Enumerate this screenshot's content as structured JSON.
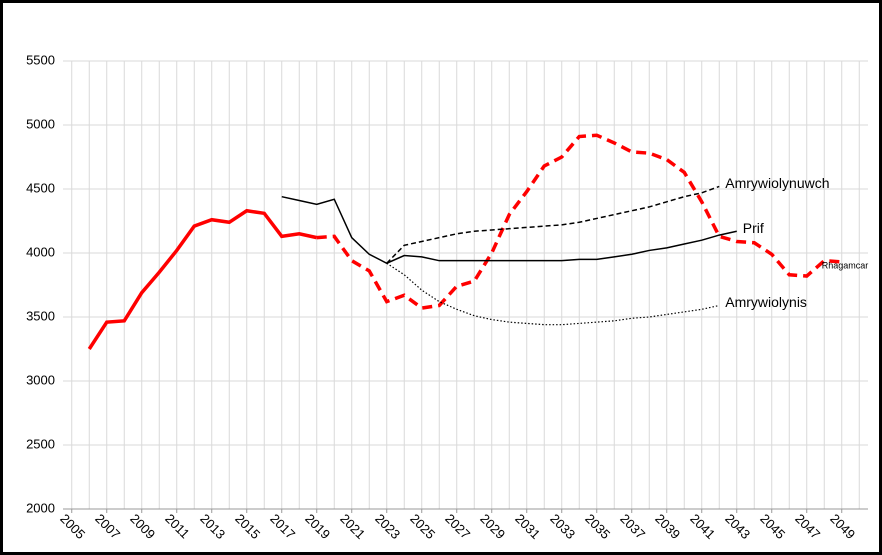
{
  "chart_data": {
    "type": "line",
    "xlim": [
      2004.5,
      2050.5
    ],
    "xticks": [
      2005,
      2007,
      2009,
      2011,
      2013,
      2015,
      2017,
      2019,
      2021,
      2023,
      2025,
      2027,
      2029,
      2031,
      2033,
      2035,
      2037,
      2039,
      2041,
      2043,
      2045,
      2047,
      2049
    ],
    "ylim": [
      2000,
      5500
    ],
    "yticks": [
      2000,
      2500,
      3000,
      3500,
      4000,
      4500,
      5000,
      5500
    ],
    "grid": true,
    "series": [
      {
        "name": "Rhagamcar",
        "color": "#ff0000",
        "width": 3.5,
        "dashed_from": 2019,
        "x": [
          2006,
          2007,
          2008,
          2009,
          2010,
          2011,
          2012,
          2013,
          2014,
          2015,
          2016,
          2017,
          2018,
          2019,
          2020,
          2021,
          2022,
          2023,
          2024,
          2025,
          2026,
          2027,
          2028,
          2029,
          2030,
          2031,
          2032,
          2033,
          2034,
          2035,
          2036,
          2037,
          2038,
          2039,
          2040,
          2041,
          2042,
          2043,
          2044,
          2045,
          2046,
          2047,
          2048,
          2049
        ],
        "values": [
          3250,
          3460,
          3470,
          3690,
          3850,
          4020,
          4210,
          4260,
          4240,
          4330,
          4310,
          4130,
          4150,
          4120,
          4130,
          3940,
          3860,
          3620,
          3670,
          3570,
          3590,
          3740,
          3780,
          4000,
          4300,
          4480,
          4680,
          4750,
          4910,
          4920,
          4860,
          4790,
          4780,
          4730,
          4630,
          4400,
          4130,
          4090,
          4080,
          3990,
          3830,
          3820,
          3940,
          3930
        ]
      },
      {
        "name": "Prif",
        "color": "#000000",
        "width": 1.5,
        "x": [
          2017,
          2018,
          2019,
          2020,
          2021,
          2022,
          2023,
          2024,
          2025,
          2026,
          2027,
          2028,
          2029,
          2030,
          2031,
          2032,
          2033,
          2034,
          2035,
          2036,
          2037,
          2038,
          2039,
          2040,
          2041,
          2042,
          2043
        ],
        "values": [
          4440,
          4410,
          4380,
          4420,
          4120,
          3990,
          3920,
          3980,
          3970,
          3940,
          3940,
          3940,
          3940,
          3940,
          3940,
          3940,
          3940,
          3950,
          3950,
          3970,
          3990,
          4020,
          4040,
          4070,
          4100,
          4140,
          4170
        ]
      },
      {
        "name": "Amrywiolynuwch",
        "color": "#000000",
        "width": 1.5,
        "dash": "5,3",
        "x": [
          2023,
          2024,
          2025,
          2026,
          2027,
          2028,
          2029,
          2030,
          2031,
          2032,
          2033,
          2034,
          2035,
          2036,
          2037,
          2038,
          2039,
          2040,
          2041,
          2042
        ],
        "values": [
          3920,
          4060,
          4090,
          4120,
          4150,
          4170,
          4180,
          4190,
          4200,
          4210,
          4220,
          4240,
          4270,
          4300,
          4330,
          4360,
          4400,
          4440,
          4470,
          4520
        ]
      },
      {
        "name": "Amrywiolynis",
        "color": "#000000",
        "width": 1.2,
        "dash": "1.5,2",
        "x": [
          2023,
          2024,
          2025,
          2026,
          2027,
          2028,
          2029,
          2030,
          2031,
          2032,
          2033,
          2034,
          2035,
          2036,
          2037,
          2038,
          2039,
          2040,
          2041,
          2042
        ],
        "values": [
          3920,
          3830,
          3710,
          3620,
          3560,
          3510,
          3480,
          3460,
          3450,
          3440,
          3440,
          3450,
          3460,
          3470,
          3490,
          3500,
          3520,
          3540,
          3560,
          3590
        ]
      }
    ]
  }
}
